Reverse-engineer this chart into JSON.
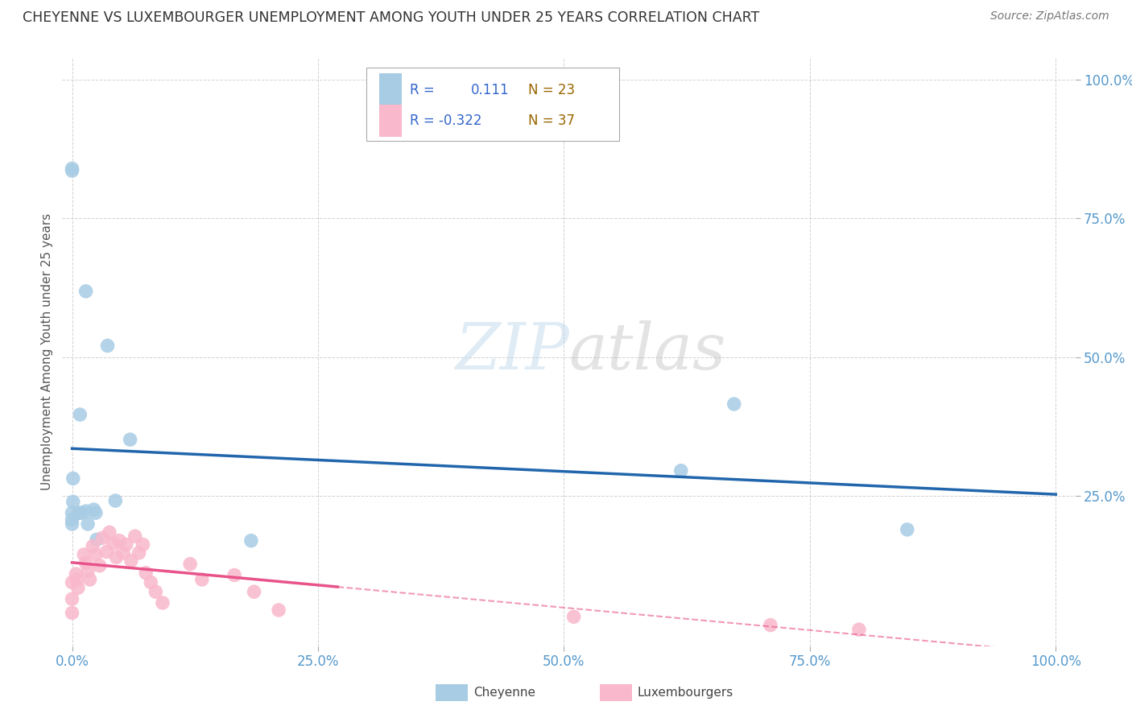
{
  "title": "CHEYENNE VS LUXEMBOURGER UNEMPLOYMENT AMONG YOUTH UNDER 25 YEARS CORRELATION CHART",
  "source": "Source: ZipAtlas.com",
  "ylabel": "Unemployment Among Youth under 25 years",
  "cheyenne_color": "#a8cce4",
  "luxembourger_color": "#f9b8cb",
  "cheyenne_line_color": "#2166ac",
  "luxembourger_line_color": "#e8548a",
  "cheyenne_R": 0.111,
  "cheyenne_N": 23,
  "luxembourger_R": -0.322,
  "luxembourger_N": 37,
  "background_color": "#ffffff",
  "grid_color": "#cccccc",
  "title_color": "#333333",
  "axis_label_color": "#555555",
  "tick_color": "#5599cc",
  "legend_R_color": "#3366cc",
  "legend_N_color": "#996600",
  "watermark_color_zip": "#b8d4e8",
  "watermark_color_atlas": "#c8c8c8",
  "cheyenne_x": [
    0.014,
    0.036,
    0.008,
    0.001,
    0.0,
    0.0,
    0.059,
    0.014,
    0.022,
    0.0,
    0.0,
    0.016,
    0.025,
    0.673,
    0.619,
    0.182,
    0.849,
    0.044,
    0.0,
    0.007,
    0.024,
    0.009,
    0.001
  ],
  "cheyenne_y": [
    0.619,
    0.521,
    0.397,
    0.282,
    0.836,
    0.84,
    0.352,
    0.223,
    0.226,
    0.208,
    0.2,
    0.2,
    0.172,
    0.416,
    0.296,
    0.17,
    0.19,
    0.242,
    0.22,
    0.22,
    0.22,
    0.22,
    0.24
  ],
  "luxembourger_x": [
    0.0,
    0.0,
    0.0,
    0.004,
    0.005,
    0.006,
    0.012,
    0.014,
    0.016,
    0.018,
    0.021,
    0.024,
    0.028,
    0.031,
    0.035,
    0.038,
    0.042,
    0.045,
    0.048,
    0.052,
    0.055,
    0.06,
    0.064,
    0.068,
    0.072,
    0.075,
    0.08,
    0.085,
    0.092,
    0.12,
    0.132,
    0.165,
    0.185,
    0.21,
    0.51,
    0.71,
    0.8
  ],
  "luxembourger_y": [
    0.095,
    0.065,
    0.04,
    0.11,
    0.1,
    0.085,
    0.145,
    0.13,
    0.115,
    0.1,
    0.16,
    0.145,
    0.125,
    0.175,
    0.15,
    0.185,
    0.165,
    0.14,
    0.17,
    0.148,
    0.163,
    0.134,
    0.178,
    0.148,
    0.163,
    0.112,
    0.095,
    0.078,
    0.058,
    0.128,
    0.1,
    0.108,
    0.078,
    0.045,
    0.033,
    0.018,
    0.01
  ],
  "xlim": [
    0.0,
    1.0
  ],
  "ylim": [
    0.0,
    1.0
  ],
  "xticks": [
    0.0,
    0.25,
    0.5,
    0.75,
    1.0
  ],
  "yticks": [
    0.25,
    0.5,
    0.75,
    1.0
  ],
  "xtick_labels": [
    "0.0%",
    "25.0%",
    "50.0%",
    "75.0%",
    "100.0%"
  ],
  "ytick_labels": [
    "25.0%",
    "50.0%",
    "75.0%",
    "100.0%"
  ]
}
